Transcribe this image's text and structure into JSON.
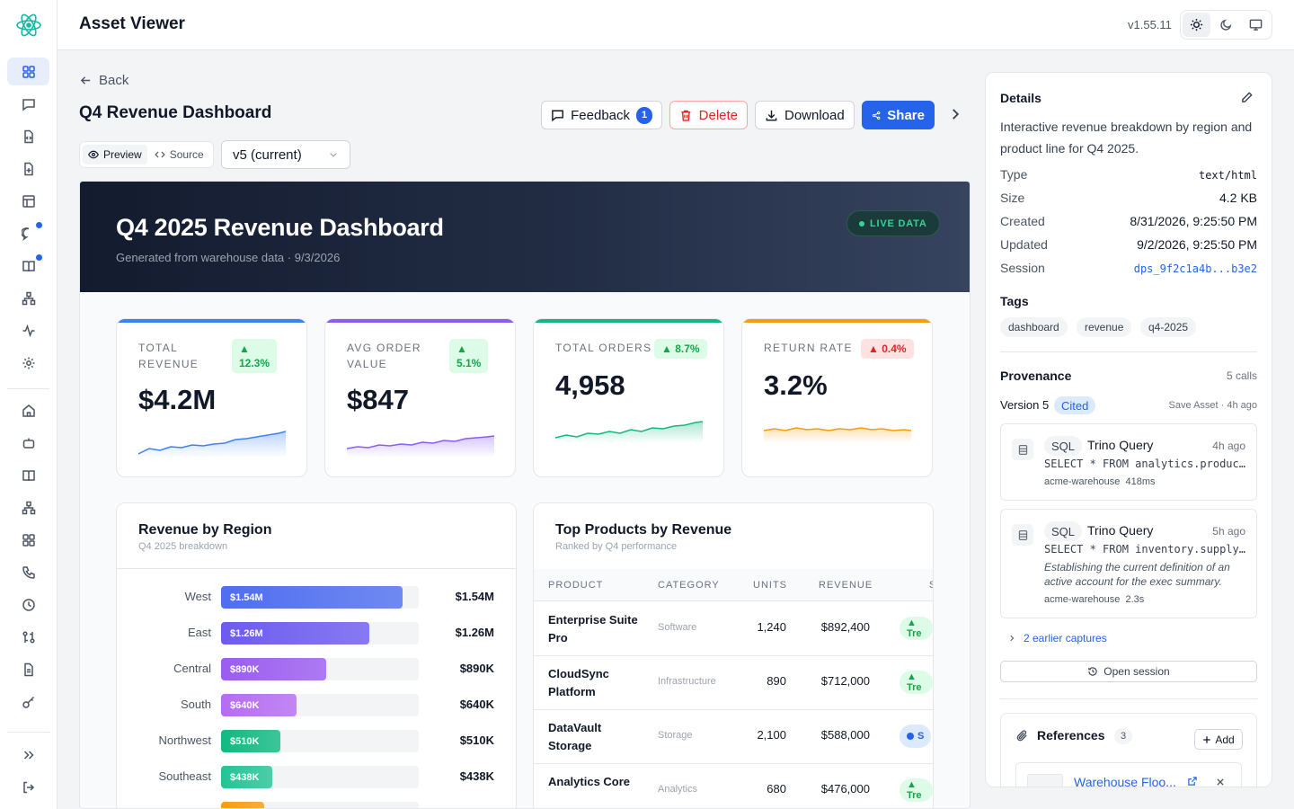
{
  "app": {
    "title": "Asset Viewer",
    "version": "v1.55.11"
  },
  "nav": {
    "back_label": "Back"
  },
  "asset": {
    "title": "Q4 Revenue Dashboard"
  },
  "actions": {
    "feedback_label": "Feedback",
    "feedback_count": "1",
    "delete_label": "Delete",
    "download_label": "Download",
    "share_label": "Share"
  },
  "view": {
    "preview_label": "Preview",
    "source_label": "Source",
    "version_selected": "v5 (current)"
  },
  "dashboard": {
    "title": "Q4 2025 Revenue Dashboard",
    "subtitle": "Generated from warehouse data · 9/3/2026",
    "live_label": "LIVE DATA",
    "kpis": [
      {
        "label_line1": "TOTAL",
        "label_line2": "REVENUE",
        "value": "$4.2M",
        "change_line1": "▲",
        "change_line2": "12.3%",
        "direction": "up",
        "accent": "#3b82f6"
      },
      {
        "label_line1": "AVG ORDER",
        "label_line2": "VALUE",
        "value": "$847",
        "change_line1": "▲",
        "change_line2": "5.1%",
        "direction": "up",
        "accent": "#8b5cf6"
      },
      {
        "label_line1": "TOTAL ORDERS",
        "label_line2": "",
        "value": "4,958",
        "change_line1": "▲ 8.7%",
        "change_line2": "",
        "direction": "up",
        "accent": "#10b981"
      },
      {
        "label_line1": "RETURN RATE",
        "label_line2": "",
        "value": "3.2%",
        "change_line1": "▲ 0.4%",
        "change_line2": "",
        "direction": "down",
        "accent": "#f59e0b"
      }
    ],
    "region_card": {
      "title": "Revenue by Region",
      "subtitle": "Q4 2025 breakdown",
      "rows": [
        {
          "region": "West",
          "bar_label": "$1.54M",
          "value_label": "$1.54M",
          "share": 0.92,
          "color": "#4f6ef0"
        },
        {
          "region": "East",
          "bar_label": "$1.26M",
          "value_label": "$1.26M",
          "share": 0.75,
          "color": "#6d5bf0"
        },
        {
          "region": "Central",
          "bar_label": "$890K",
          "value_label": "$890K",
          "share": 0.53,
          "color": "#9b5cf0"
        },
        {
          "region": "South",
          "bar_label": "$640K",
          "value_label": "$640K",
          "share": 0.38,
          "color": "#b56cf2"
        },
        {
          "region": "Northwest",
          "bar_label": "$510K",
          "value_label": "$510K",
          "share": 0.3,
          "color": "#10b981"
        },
        {
          "region": "Southeast",
          "bar_label": "$438K",
          "value_label": "$438K",
          "share": 0.26,
          "color": "#22c495"
        },
        {
          "region": "",
          "bar_label": "",
          "value_label": "",
          "share": 0.22,
          "color": "#f59e0b"
        }
      ]
    },
    "products_card": {
      "title": "Top Products by Revenue",
      "subtitle": "Ranked by Q4 performance",
      "columns": [
        "PRODUCT",
        "CATEGORY",
        "UNITS",
        "REVENUE",
        "S"
      ],
      "rows": [
        {
          "product": "Enterprise Suite Pro",
          "category": "Software",
          "units": "1,240",
          "revenue": "$892,400",
          "status": "▲ Tre",
          "status_style": "trend"
        },
        {
          "product": "CloudSync Platform",
          "category": "Infrastructure",
          "units": "890",
          "revenue": "$712,000",
          "status": "▲ Tre",
          "status_style": "trend"
        },
        {
          "product": "DataVault Storage",
          "category": "Storage",
          "units": "2,100",
          "revenue": "$588,000",
          "status": "S",
          "status_style": "blue"
        },
        {
          "product": "Analytics Core",
          "category": "Analytics",
          "units": "680",
          "revenue": "$476,000",
          "status": "▲ Tre",
          "status_style": "trend"
        }
      ]
    }
  },
  "details": {
    "title": "Details",
    "description": "Interactive revenue breakdown by region and product line for Q4 2025.",
    "fields": [
      {
        "key": "Type",
        "value": "text/html"
      },
      {
        "key": "Size",
        "value": "4.2 KB"
      },
      {
        "key": "Created",
        "value": "8/31/2026, 9:25:50 PM"
      },
      {
        "key": "Updated",
        "value": "9/2/2026, 9:25:50 PM"
      },
      {
        "key": "Session",
        "value": "dps_9f2c1a4b...b3e2"
      }
    ],
    "tags_title": "Tags",
    "tags": [
      "dashboard",
      "revenue",
      "q4-2025"
    ],
    "provenance_title": "Provenance",
    "provenance_calls": "5 calls",
    "version_label": "Version 5",
    "cited_label": "Cited",
    "save_meta": "Save Asset · 4h ago",
    "captures": [
      {
        "kind": "SQL",
        "name": "Trino Query",
        "time": "4h ago",
        "query": "SELECT * FROM analytics.product_revenue",
        "note": "",
        "source": "acme-warehouse",
        "duration": "418ms"
      },
      {
        "kind": "SQL",
        "name": "Trino Query",
        "time": "5h ago",
        "query": "SELECT * FROM inventory.supply_chain",
        "note": "Establishing the current definition of an active account for the exec summary.",
        "source": "acme-warehouse",
        "duration": "2.3s"
      }
    ],
    "earlier_label": "2 earlier captures",
    "open_session_label": "Open session",
    "references_title": "References",
    "references_count": "3",
    "add_label": "Add",
    "reference_name": "Warehouse Floo..."
  },
  "colors": {
    "accent": "#2563eb",
    "danger": "#dc2626",
    "success": "#16a34a"
  }
}
